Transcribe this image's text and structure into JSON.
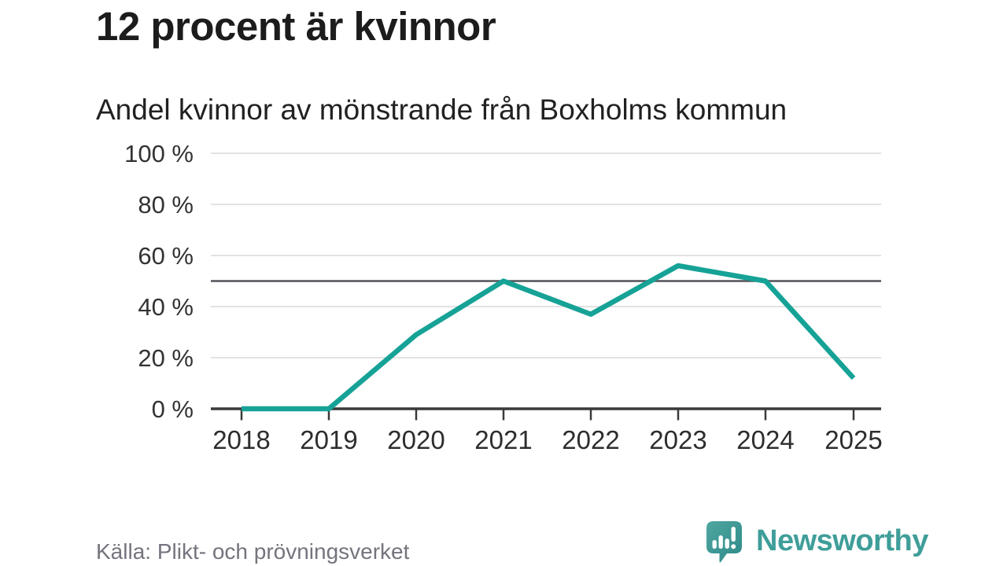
{
  "header": {
    "title": "12 procent är kvinnor",
    "subtitle": "Andel kvinnor av mönstrande från Boxholms kommun"
  },
  "chart_data": {
    "type": "line",
    "title": "12 procent är kvinnor",
    "subtitle": "Andel kvinnor av mönstrande från Boxholms kommun",
    "categories": [
      "2018",
      "2019",
      "2020",
      "2021",
      "2022",
      "2023",
      "2024",
      "2025"
    ],
    "series": [
      {
        "name": "Andel kvinnor",
        "values": [
          0,
          0,
          29,
          50,
          37,
          56,
          50,
          12
        ],
        "color": "#16a296"
      }
    ],
    "unit": "%",
    "xlabel": "",
    "ylabel": "",
    "ylim": [
      0,
      100
    ],
    "yticks": [
      0,
      20,
      40,
      60,
      80,
      100
    ],
    "ytick_labels": [
      "0 %",
      "20 %",
      "40 %",
      "60 %",
      "80 %",
      "100 %"
    ],
    "reference_line": {
      "value": 50
    },
    "grid": true,
    "legend": "none"
  },
  "footer": {
    "source": "Källa: Plikt- och prövningsverket",
    "brand": "Newsworthy"
  },
  "colors": {
    "line": "#16a296",
    "grid": "#e3e3e3",
    "axis": "#3a3a3a",
    "reference": "#52525a",
    "brand_teal": "#3f9e99",
    "source_text": "#74747e"
  }
}
